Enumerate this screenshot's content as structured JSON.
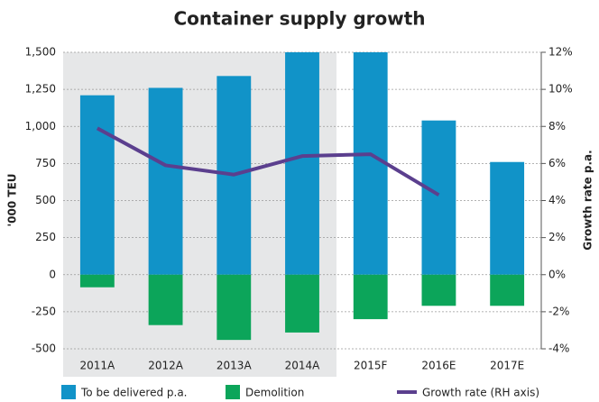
{
  "chart_data": {
    "type": "bar",
    "title": "Container supply growth",
    "y_label": "'000 TEU",
    "y2_label": "Growth rate p.a.",
    "categories": [
      "2011A",
      "2012A",
      "2013A",
      "2014A",
      "2015F",
      "2016E",
      "2017E"
    ],
    "series": [
      {
        "name": "To be delivered p.a.",
        "type": "bar",
        "color": "#1193c8",
        "values": [
          1210,
          1260,
          1340,
          1500,
          1500,
          1040,
          760
        ]
      },
      {
        "name": "Demolition",
        "type": "bar",
        "color": "#0ca55a",
        "values": [
          -85,
          -340,
          -440,
          -390,
          -300,
          -210,
          -210
        ]
      },
      {
        "name": "Growth rate (RH axis)",
        "type": "line",
        "axis": "y2",
        "color": "#5b3f8e",
        "values": [
          7.9,
          5.9,
          5.4,
          6.4,
          6.5,
          4.3,
          null
        ]
      }
    ],
    "ylim": [
      -500,
      1500
    ],
    "yticks": [
      {
        "value": -500,
        "label": "-500"
      },
      {
        "value": -250,
        "label": "-250"
      },
      0,
      250,
      500,
      750,
      {
        "value": 1000,
        "label": "1,000"
      },
      {
        "value": 1250,
        "label": "1,250"
      },
      {
        "value": 1500,
        "label": "1,500"
      }
    ],
    "y2lim": [
      -4,
      12
    ],
    "y2ticks": [
      {
        "value": -4,
        "label": "-4%"
      },
      {
        "value": -2,
        "label": "-2%"
      },
      {
        "value": 0,
        "label": "0%"
      },
      {
        "value": 2,
        "label": "2%"
      },
      {
        "value": 4,
        "label": "4%"
      },
      {
        "value": 6,
        "label": "6%"
      },
      {
        "value": 8,
        "label": "8%"
      },
      {
        "value": 10,
        "label": "10%"
      },
      {
        "value": 12,
        "label": "12%"
      }
    ],
    "grid": true
  }
}
